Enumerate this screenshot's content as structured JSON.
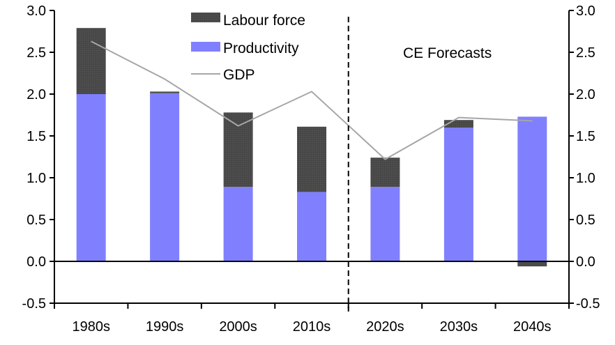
{
  "chart_data": {
    "type": "bar",
    "stacked": true,
    "title": "",
    "xlabel": "",
    "ylabel": "",
    "categories": [
      "1980s",
      "1990s",
      "2000s",
      "2010s",
      "2020s",
      "2030s",
      "2040s"
    ],
    "series": [
      {
        "name": "Productivity",
        "type": "bar",
        "color": "#8080ff",
        "values": [
          2.0,
          2.01,
          0.89,
          0.83,
          0.89,
          1.6,
          1.73
        ]
      },
      {
        "name": "Labour force",
        "type": "bar",
        "color": "#4d4d4d",
        "values": [
          0.79,
          0.02,
          0.89,
          0.78,
          0.35,
          0.09,
          -0.06
        ]
      },
      {
        "name": "GDP",
        "type": "line",
        "color": "#a6a6a6",
        "values": [
          2.63,
          2.18,
          1.62,
          2.03,
          1.22,
          1.72,
          1.68
        ]
      }
    ],
    "ylim": [
      -0.5,
      3.0
    ],
    "yticks": [
      "3.0",
      "2.5",
      "2.0",
      "1.5",
      "1.0",
      "0.5",
      "0.0",
      "-0.5"
    ],
    "ytick_values": [
      3.0,
      2.5,
      2.0,
      1.5,
      1.0,
      0.5,
      0.0,
      -0.5
    ],
    "y2ticks": [
      "3.0",
      "2.5",
      "2.0",
      "1.5",
      "1.0",
      "0.5",
      "0.0",
      "-0.5"
    ],
    "grid": false,
    "legend": {
      "placement": "top-center",
      "entries": [
        "Labour force",
        "Productivity",
        "GDP"
      ]
    },
    "annotations": [
      {
        "text": "CE Forecasts",
        "type": "label"
      },
      {
        "type": "vertical-dashed-divider",
        "between": [
          "2010s",
          "2020s"
        ]
      }
    ]
  }
}
